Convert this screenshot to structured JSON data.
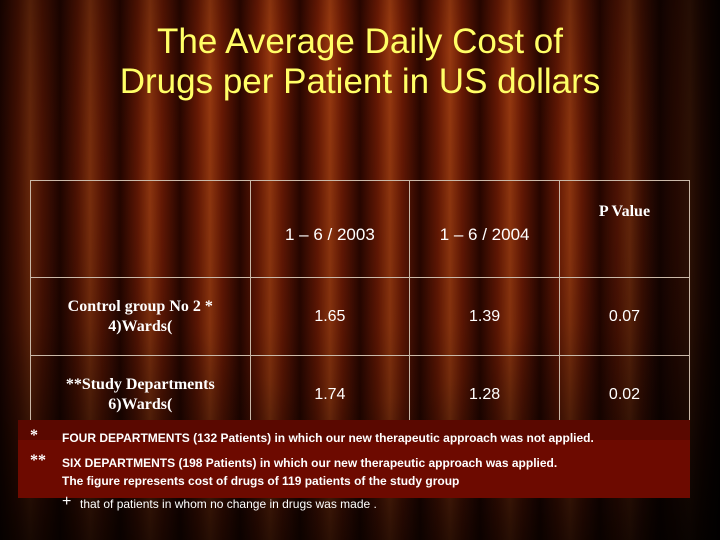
{
  "title": {
    "line1": "The  Average  Daily  Cost  of",
    "line2": "Drugs per  Patient  in US dollars"
  },
  "table": {
    "headers": [
      "",
      "1 – 6 / 2003",
      "1 – 6 / 2004",
      "P Value"
    ],
    "rows": [
      {
        "label_line1": "Control group No 2 *",
        "label_line2": "4)Wards(",
        "v2003": "1.65",
        "v2004": "1.39",
        "p": "0.07"
      },
      {
        "label_line1": "**Study Departments",
        "label_line2": "6)Wards(",
        "v2003": "1.74",
        "v2004": "1.28",
        "p": "0.02"
      }
    ]
  },
  "footnotes": {
    "star1_mark": "*",
    "star1_text": "FOUR DEPARTMENTS  (132 Patients) in which our new therapeutic approach was not applied.",
    "star2_mark": "**",
    "star2_text": "SIX DEPARTMENTS  (198 Patients) in which our new therapeutic approach was applied.",
    "line3": "The figure represents cost of drugs of  119 patients of the  study group",
    "line4_mark": "+",
    "line4": "that of patients in whom no change in drugs was made ."
  }
}
